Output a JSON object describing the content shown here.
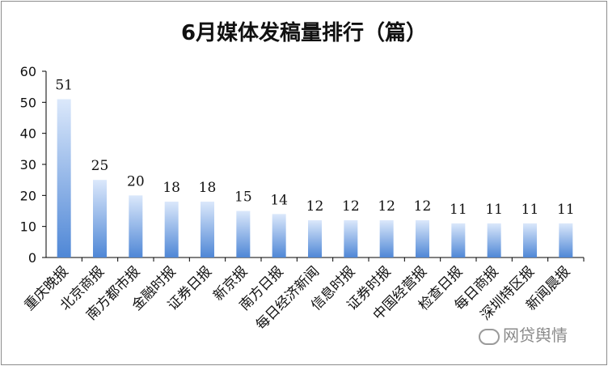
{
  "chart_data": {
    "type": "bar",
    "title": "6月媒体发稿量排行（篇）",
    "categories": [
      "重庆晚报",
      "北京商报",
      "南方都市报",
      "金融时报",
      "证券日报",
      "新京报",
      "南方日报",
      "每日经济新闻",
      "信息时报",
      "证券时报",
      "中国经营报",
      "检查日报",
      "每日商报",
      "深圳特区报",
      "新闻晨报"
    ],
    "values": [
      51,
      25,
      20,
      18,
      18,
      15,
      14,
      12,
      12,
      12,
      12,
      11,
      11,
      11,
      11
    ],
    "ylim": [
      0,
      60
    ],
    "yticks": [
      0,
      10,
      20,
      30,
      40,
      50,
      60
    ],
    "grid": false,
    "legend": "none",
    "colors": {
      "bar_top": "#dbe8fb",
      "bar_bottom": "#4f87d6",
      "axis": "#000000"
    }
  },
  "watermark": {
    "text": "网贷舆情",
    "icon": "wechat-icon"
  }
}
